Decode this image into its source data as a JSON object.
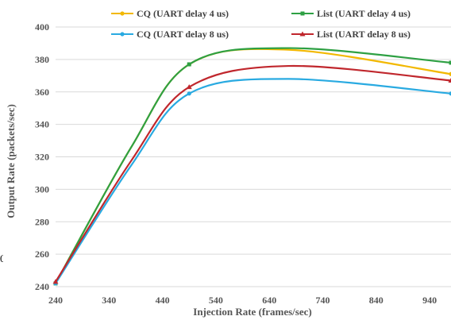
{
  "chart_data": {
    "type": "line",
    "title": "",
    "xlabel": "Injection Rate (frames/sec)",
    "ylabel": "Output Rate (packets/sec)",
    "xlim": [
      240,
      980
    ],
    "ylim": [
      240,
      400
    ],
    "x_ticks": [
      240,
      340,
      440,
      540,
      640,
      740,
      840,
      940
    ],
    "y_ticks": [
      240,
      260,
      280,
      300,
      320,
      340,
      360,
      380,
      400
    ],
    "grid": "horizontal",
    "legend_position": "top",
    "series": [
      {
        "name": "CQ (UART delay 4 us)",
        "color": "#f2b800",
        "marker": "circle",
        "x": [
          240,
          490,
          980
        ],
        "y": [
          242,
          377,
          371
        ]
      },
      {
        "name": "List (UART delay 4 us)",
        "color": "#2ea043",
        "marker": "square",
        "x": [
          240,
          490,
          980
        ],
        "y": [
          242,
          377,
          378
        ]
      },
      {
        "name": "CQ (UART delay 8 us)",
        "color": "#29aae1",
        "marker": "circle",
        "x": [
          240,
          490,
          980
        ],
        "y": [
          242,
          359,
          359
        ]
      },
      {
        "name": "List (UART delay 8 us)",
        "color": "#c0272d",
        "marker": "triangle",
        "x": [
          240,
          490,
          980
        ],
        "y": [
          243,
          363,
          367
        ]
      }
    ]
  },
  "stray_text": "0"
}
